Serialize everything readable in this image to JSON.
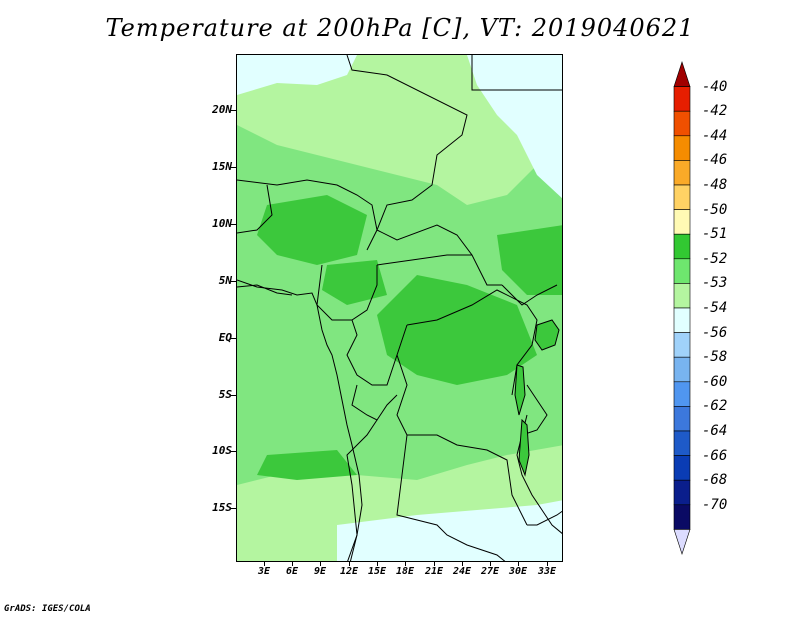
{
  "title": "Temperature at 200hPa [C], VT: 2019040621",
  "credit": "GrADS: IGES/COLA",
  "lat_labels": [
    "20N",
    "15N",
    "10N",
    "5N",
    "EQ",
    "5S",
    "10S",
    "15S"
  ],
  "lon_labels": [
    "3E",
    "6E",
    "9E",
    "12E",
    "15E",
    "18E",
    "21E",
    "24E",
    "27E",
    "30E",
    "33E"
  ],
  "legend": {
    "labels": [
      "-40",
      "-42",
      "-44",
      "-46",
      "-48",
      "-50",
      "-51",
      "-52",
      "-53",
      "-54",
      "-56",
      "-58",
      "-60",
      "-62",
      "-64",
      "-66",
      "-68",
      "-70"
    ],
    "colors": [
      "#a00000",
      "#e61e00",
      "#f05000",
      "#f58c00",
      "#faaa28",
      "#ffd264",
      "#fffab4",
      "#32c832",
      "#6ee66e",
      "#b4f5a0",
      "#e1ffff",
      "#a0d2fa",
      "#78b4f0",
      "#5096f0",
      "#3c78dc",
      "#1e5ac8",
      "#0a3cb4",
      "#0a1e8c",
      "#0a0a64",
      "#dcdcff"
    ]
  }
}
